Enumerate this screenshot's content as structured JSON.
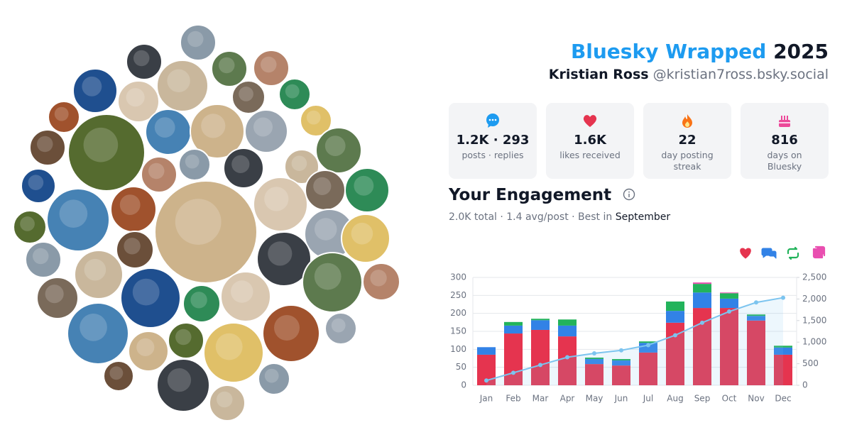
{
  "header": {
    "title": "Bluesky Wrapped",
    "year": "2025",
    "name": "Kristian Ross",
    "handle": "@kristian7ross.bsky.social"
  },
  "stats": [
    {
      "value": "1.2K · 293",
      "label": "posts · replies"
    },
    {
      "value": "1.6K",
      "label": "likes received"
    },
    {
      "value": "22",
      "label": "day posting streak"
    },
    {
      "value": "816",
      "label": "days on Bluesky"
    }
  ],
  "engagement": {
    "title": "Your Engagement",
    "summary": "2.0K total · 1.4 avg/post · Best in",
    "best": "September"
  },
  "chart_data": {
    "type": "bar",
    "categories": [
      "Jan",
      "Feb",
      "Mar",
      "Apr",
      "May",
      "Jun",
      "Jul",
      "Aug",
      "Sep",
      "Oct",
      "Nov",
      "Dec"
    ],
    "stacked": true,
    "series": [
      {
        "color": "#e5344f",
        "values": [
          85,
          144,
          154,
          136,
          59,
          55,
          91,
          174,
          215,
          215,
          180,
          85
        ]
      },
      {
        "color": "#3282e6",
        "values": [
          21,
          22,
          27,
          30,
          14,
          14,
          27,
          33,
          43,
          26,
          13,
          20
        ]
      },
      {
        "color": "#22b35b",
        "values": [
          0,
          10,
          4,
          17,
          4,
          4,
          4,
          26,
          24,
          15,
          4,
          5
        ]
      },
      {
        "color": "#e94fb0",
        "values": [
          0,
          0,
          0,
          0,
          0,
          0,
          0,
          0,
          4,
          2,
          0,
          0
        ]
      },
      {
        "type": "line",
        "axis": "y2",
        "color": "#7cc4ef",
        "values": [
          110,
          290,
          470,
          650,
          740,
          810,
          930,
          1160,
          1450,
          1710,
          1920,
          2030
        ]
      }
    ],
    "ylim": [
      0,
      300
    ],
    "yticks": [
      0,
      50,
      100,
      150,
      200,
      250,
      300
    ],
    "y2lim": [
      0,
      2500
    ],
    "y2ticks": [
      0,
      500,
      {
        "value": 1000,
        "label": "1,000"
      },
      {
        "value": 1500,
        "label": "1,500"
      },
      {
        "value": 2000,
        "label": "2,000"
      },
      {
        "value": 2500,
        "label": "2,500"
      }
    ],
    "grid": true
  }
}
